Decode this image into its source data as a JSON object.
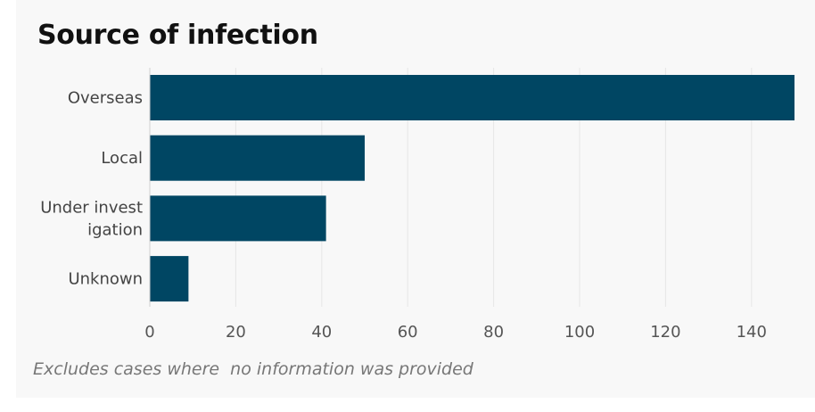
{
  "title": "Source of infection",
  "footnote": "Excludes cases where  no information was provided",
  "colors": {
    "bar": "#004663",
    "grid": "#e6e6e6",
    "axis_text": "#555555",
    "category_text": "#444444"
  },
  "chart_data": {
    "type": "bar",
    "orientation": "horizontal",
    "title": "Source of infection",
    "xlabel": "",
    "ylabel": "",
    "categories": [
      "Overseas",
      "Local",
      "Under investigation",
      "Unknown"
    ],
    "category_labels": [
      [
        "Overseas"
      ],
      [
        "Local"
      ],
      [
        "Under invest",
        "igation"
      ],
      [
        "Unknown"
      ]
    ],
    "values": [
      150,
      50,
      41,
      9
    ],
    "xlim": [
      0,
      150
    ],
    "xticks": [
      0,
      20,
      40,
      60,
      80,
      100,
      120,
      140
    ],
    "xtick_labels": [
      "0",
      "20",
      "40",
      "60",
      "80",
      "100",
      "120",
      "140"
    ],
    "grid": "vertical",
    "legend": "none"
  }
}
